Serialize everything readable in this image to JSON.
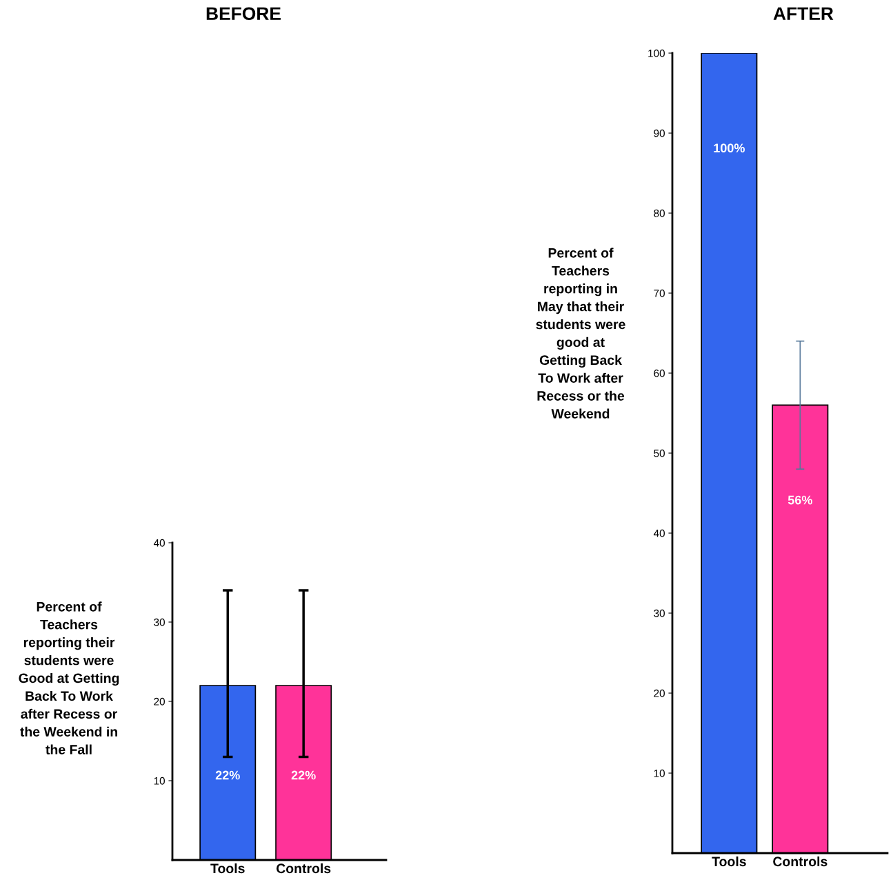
{
  "chart_data": [
    {
      "type": "bar",
      "title": "BEFORE",
      "ylabel": "Percent of\nTeachers\nreporting their\nstudents were\nGood at Getting\nBack To Work\nafter Recess or\nthe Weekend in\nthe Fall",
      "categories": [
        "Tools",
        "Controls"
      ],
      "values": [
        22,
        22
      ],
      "colors": [
        "#3366ee",
        "#ff3399"
      ],
      "errors": [
        [
          13,
          34
        ],
        [
          13,
          34
        ]
      ],
      "value_labels": [
        "22%",
        "22%"
      ],
      "ylim": [
        0,
        40
      ],
      "yticks": [
        10,
        20,
        30,
        40
      ],
      "grid": false,
      "legend": false
    },
    {
      "type": "bar",
      "title": "AFTER",
      "ylabel": "Percent of\nTeachers\nreporting in\nMay that their\nstudents were\ngood at\nGetting Back\nTo Work after\nRecess or the\nWeekend",
      "categories": [
        "Tools",
        "Controls"
      ],
      "values": [
        100,
        56
      ],
      "colors": [
        "#3366ee",
        "#ff3399"
      ],
      "errors": [
        null,
        [
          48,
          64
        ]
      ],
      "value_labels": [
        "100%",
        "56%"
      ],
      "ylim": [
        0,
        100
      ],
      "yticks": [
        10,
        20,
        30,
        40,
        50,
        60,
        70,
        80,
        90,
        100
      ],
      "grid": false,
      "legend": false
    }
  ]
}
